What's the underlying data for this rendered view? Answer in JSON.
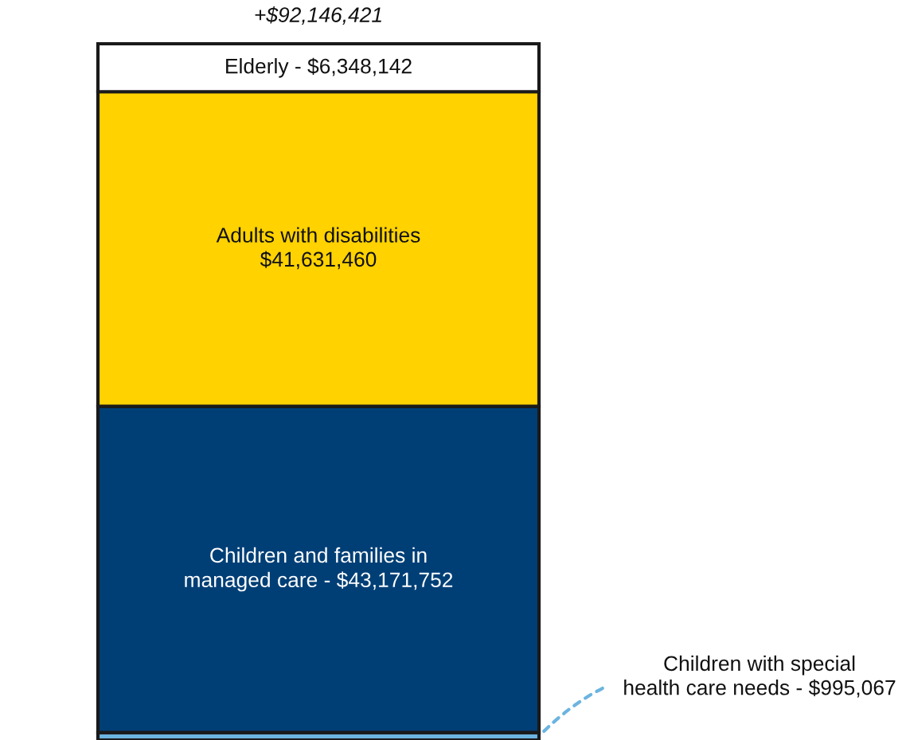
{
  "chart_data": {
    "type": "bar",
    "stacked": true,
    "categories": [
      null
    ],
    "series": [
      {
        "name": "Children with special\nhealth care needs - ",
        "color": "#6cb4e0",
        "values": [
          995067
        ],
        "value_labels": [
          "$995,067"
        ]
      },
      {
        "name": "Children and families in\nmanaged care - ",
        "color": "#003f76",
        "values": [
          43171752
        ],
        "value_labels": [
          "$43,171,752"
        ]
      },
      {
        "name": "Adults with disabilities\n",
        "color": "#ffd200",
        "values": [
          41631460
        ],
        "value_labels": [
          "$41,631,460"
        ]
      },
      {
        "name": "Elderly - ",
        "color": "#ffffff",
        "values": [
          6348142
        ],
        "value_labels": [
          "$6,348,142"
        ]
      }
    ],
    "totals": [
      "+$92,146,421"
    ]
  }
}
